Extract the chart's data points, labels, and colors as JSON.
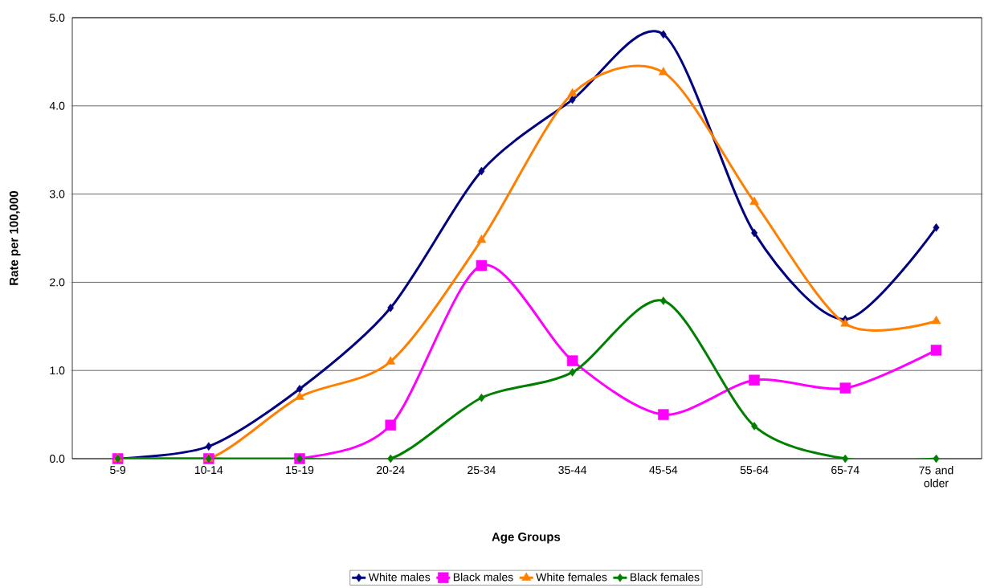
{
  "chart_data": {
    "type": "line",
    "xlabel": "Age Groups",
    "ylabel": "Rate per 100,000",
    "categories": [
      "5-9",
      "10-14",
      "15-19",
      "20-24",
      "25-34",
      "35-44",
      "45-54",
      "55-64",
      "65-74",
      "75 and older"
    ],
    "series": [
      {
        "name": "White males",
        "color": "#000080",
        "marker": "diamond",
        "values": [
          0,
          0.14,
          0.79,
          1.71,
          3.26,
          4.07,
          4.81,
          2.56,
          1.58,
          2.62
        ]
      },
      {
        "name": "Black males",
        "color": "#ff00ff",
        "marker": "square",
        "values": [
          0,
          0,
          0,
          0.38,
          2.19,
          1.11,
          0.5,
          0.89,
          0.8,
          1.23
        ]
      },
      {
        "name": "White females",
        "color": "#ff7f00",
        "marker": "triangle",
        "values": [
          0,
          0,
          0.7,
          1.1,
          2.48,
          4.14,
          4.38,
          2.91,
          1.53,
          1.56
        ]
      },
      {
        "name": "Black females",
        "color": "#008000",
        "marker": "diamond",
        "values": [
          0,
          0,
          0,
          0,
          0.69,
          0.98,
          1.79,
          0.37,
          0,
          0
        ]
      }
    ],
    "ylim": [
      0,
      5
    ],
    "yticks": [
      {
        "value": 0,
        "label": "0.0"
      },
      {
        "value": 1,
        "label": "1.0"
      },
      {
        "value": 2,
        "label": "2.0"
      },
      {
        "value": 3,
        "label": "3.0"
      },
      {
        "value": 4,
        "label": "4.0"
      },
      {
        "value": 5,
        "label": "5.0"
      }
    ],
    "grid": "y",
    "legend": "bottom",
    "line_style": "solid"
  }
}
